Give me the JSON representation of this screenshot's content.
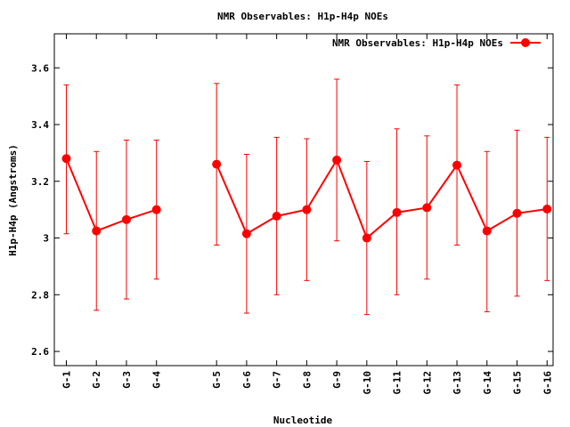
{
  "chart_data": {
    "type": "line",
    "title": "NMR Observables: H1p-H4p NOEs",
    "xlabel": "Nucleotide",
    "ylabel": "H1p-H4p (Angstroms)",
    "ylim": [
      2.55,
      3.72
    ],
    "yticks": [
      "2.6",
      "2.8",
      "3",
      "3.2",
      "3.4",
      "3.6"
    ],
    "ytick_values": [
      2.6,
      2.8,
      3.0,
      3.2,
      3.4,
      3.6
    ],
    "xlim": [
      0.6,
      17.2
    ],
    "grid": false,
    "legend_position": "top-right",
    "series": [
      {
        "name": "NMR Observables: H1p-H4p NOEs",
        "color": "#ff0000",
        "marker": "circle",
        "error_bars": true,
        "segments": [
          [
            {
              "x": 1,
              "label": "G-1",
              "y": 3.28,
              "low": 3.015,
              "high": 3.54
            },
            {
              "x": 2,
              "label": "G-2",
              "y": 3.025,
              "low": 2.745,
              "high": 3.305
            },
            {
              "x": 3,
              "label": "G-3",
              "y": 3.065,
              "low": 2.785,
              "high": 3.345
            },
            {
              "x": 4,
              "label": "G-4",
              "y": 3.1,
              "low": 2.855,
              "high": 3.345
            }
          ],
          [
            {
              "x": 6,
              "label": "G-5",
              "y": 3.26,
              "low": 2.975,
              "high": 3.545
            },
            {
              "x": 7,
              "label": "G-6",
              "y": 3.015,
              "low": 2.735,
              "high": 3.295
            },
            {
              "x": 8,
              "label": "G-7",
              "y": 3.077,
              "low": 2.8,
              "high": 3.355
            },
            {
              "x": 9,
              "label": "G-8",
              "y": 3.1,
              "low": 2.85,
              "high": 3.35
            },
            {
              "x": 10,
              "label": "G-9",
              "y": 3.275,
              "low": 2.99,
              "high": 3.56
            },
            {
              "x": 11,
              "label": "G-10",
              "y": 3.0,
              "low": 2.73,
              "high": 3.27
            },
            {
              "x": 12,
              "label": "G-11",
              "y": 3.09,
              "low": 2.8,
              "high": 3.385
            },
            {
              "x": 13,
              "label": "G-12",
              "y": 3.107,
              "low": 2.855,
              "high": 3.36
            },
            {
              "x": 14,
              "label": "G-13",
              "y": 3.257,
              "low": 2.975,
              "high": 3.54
            },
            {
              "x": 15,
              "label": "G-14",
              "y": 3.025,
              "low": 2.74,
              "high": 3.305
            },
            {
              "x": 16,
              "label": "G-15",
              "y": 3.087,
              "low": 2.795,
              "high": 3.38
            },
            {
              "x": 17,
              "label": "G-16",
              "y": 3.102,
              "low": 2.85,
              "high": 3.355
            }
          ]
        ]
      }
    ]
  }
}
